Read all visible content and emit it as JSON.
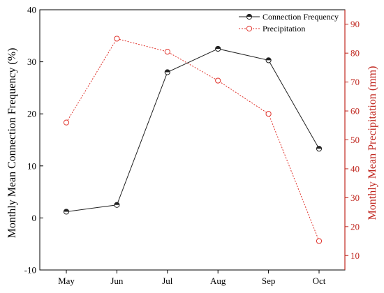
{
  "colors": {
    "series1": "#222222",
    "series2": "#e0332c",
    "axis_left": "#000000",
    "axis_right": "#c0271f"
  },
  "chart_data": {
    "type": "line",
    "categories": [
      "May",
      "Jun",
      "Jul",
      "Aug",
      "Sep",
      "Oct"
    ],
    "series": [
      {
        "name": "Connection Frequency",
        "axis": "left",
        "values": [
          1.2,
          2.5,
          28,
          32.5,
          30.3,
          13.3
        ],
        "line_style": "solid",
        "marker": "half-filled-circle"
      },
      {
        "name": "Precipitation",
        "axis": "right",
        "values": [
          56,
          85,
          80.5,
          70.5,
          59,
          15
        ],
        "line_style": "dotted",
        "marker": "open-circle"
      }
    ],
    "ylabel_left": "Monthly Mean Connection Frequency  (%)",
    "ylabel_right": "Monthly Mean Precipitation (mm)",
    "ylim_left": [
      -10,
      40
    ],
    "yticks_left": [
      "-10",
      "0",
      "10",
      "20",
      "30",
      "40"
    ],
    "ylim_right": [
      5,
      95
    ],
    "yticks_right": [
      "10",
      "20",
      "30",
      "40",
      "50",
      "60",
      "70",
      "80",
      "90"
    ],
    "legend_position": "top-right",
    "grid": false
  }
}
